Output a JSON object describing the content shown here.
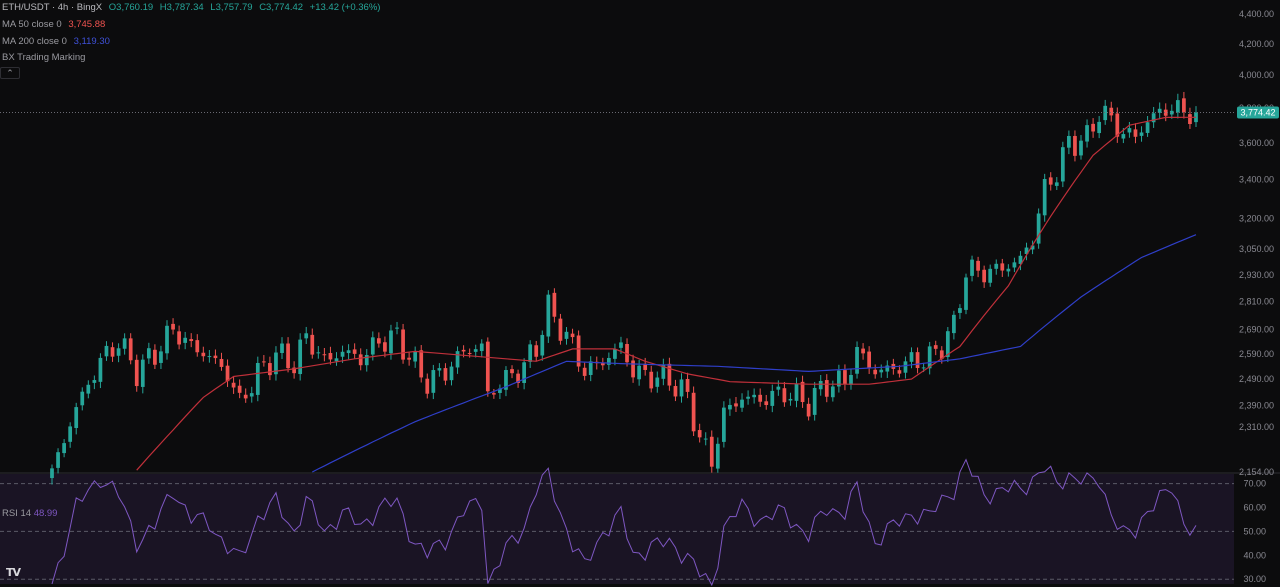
{
  "header": {
    "symbol": "ETH/USDT · 4h · BingX",
    "open": "O3,760.19",
    "high": "H3,787.34",
    "low": "L3,757.79",
    "close": "C3,774.42",
    "change": "+13.42 (+0.36%)"
  },
  "indicators": {
    "ma50_label": "MA 50 close 0",
    "ma50_value": "3,745.88",
    "ma200_label": "MA 200 close 0",
    "ma200_value": "3,119.30",
    "bx_label": "BX Trading Marking",
    "rsi_label": "RSI 14",
    "rsi_value": "48.99",
    "collapse_icon": "chevron-up-icon"
  },
  "price_axis": {
    "ticks": [
      "4,400.00",
      "4,200.00",
      "4,000.00",
      "3,800.00",
      "3,600.00",
      "3,400.00",
      "3,200.00",
      "3,050.00",
      "2,930.00",
      "2,810.00",
      "2,690.00",
      "2,590.00",
      "2,490.00",
      "2,390.00",
      "2,310.00",
      "2,154.00"
    ],
    "last_price_label": "3,774.42"
  },
  "rsi_axis": {
    "ticks": [
      "70.00",
      "60.00",
      "50.00",
      "40.00",
      "30.00"
    ]
  },
  "colors": {
    "up": "#26a69a",
    "down": "#ef5350",
    "ma50": "#c0303a",
    "ma200": "#2f3fc9",
    "rsi": "#7e57c2",
    "background": "#0c0c0d"
  },
  "logo_text": "TV",
  "chart_data": {
    "type": "candlestick",
    "interval": "4h",
    "y_axis_scale": "log",
    "price_range": [
      2154,
      4470
    ],
    "rsi_range": [
      28,
      74
    ],
    "rsi_levels": [
      70,
      50,
      30
    ],
    "candle_count": 190,
    "close_path": [
      [
        0,
        2150
      ],
      [
        4,
        2380
      ],
      [
        8,
        2560
      ],
      [
        11,
        2640
      ],
      [
        14,
        2520
      ],
      [
        17,
        2590
      ],
      [
        20,
        2690
      ],
      [
        23,
        2620
      ],
      [
        26,
        2580
      ],
      [
        29,
        2510
      ],
      [
        31,
        2400
      ],
      [
        34,
        2510
      ],
      [
        37,
        2590
      ],
      [
        40,
        2550
      ],
      [
        42,
        2660
      ],
      [
        45,
        2560
      ],
      [
        48,
        2600
      ],
      [
        51,
        2570
      ],
      [
        54,
        2640
      ],
      [
        57,
        2660
      ],
      [
        60,
        2540
      ],
      [
        62,
        2480
      ],
      [
        65,
        2520
      ],
      [
        68,
        2600
      ],
      [
        71,
        2620
      ],
      [
        72,
        2430
      ],
      [
        75,
        2490
      ],
      [
        78,
        2540
      ],
      [
        80,
        2620
      ],
      [
        82,
        2780
      ],
      [
        84,
        2700
      ],
      [
        86,
        2620
      ],
      [
        88,
        2520
      ],
      [
        91,
        2560
      ],
      [
        94,
        2620
      ],
      [
        96,
        2520
      ],
      [
        99,
        2500
      ],
      [
        102,
        2490
      ],
      [
        105,
        2420
      ],
      [
        107,
        2270
      ],
      [
        109,
        2190
      ],
      [
        111,
        2360
      ],
      [
        114,
        2420
      ],
      [
        117,
        2410
      ],
      [
        121,
        2440
      ],
      [
        125,
        2400
      ],
      [
        128,
        2470
      ],
      [
        131,
        2480
      ],
      [
        133,
        2600
      ],
      [
        136,
        2520
      ],
      [
        139,
        2530
      ],
      [
        142,
        2560
      ],
      [
        145,
        2570
      ],
      [
        147,
        2630
      ],
      [
        149,
        2700
      ],
      [
        151,
        2950
      ],
      [
        154,
        2940
      ],
      [
        157,
        2960
      ],
      [
        160,
        3000
      ],
      [
        162,
        3100
      ],
      [
        164,
        3350
      ],
      [
        166,
        3440
      ],
      [
        168,
        3600
      ],
      [
        171,
        3620
      ],
      [
        173,
        3780
      ],
      [
        175,
        3730
      ],
      [
        177,
        3650
      ],
      [
        179,
        3640
      ],
      [
        181,
        3720
      ],
      [
        183,
        3780
      ],
      [
        185,
        3800
      ],
      [
        187,
        3780
      ],
      [
        189,
        3774
      ]
    ],
    "ma50_path": [
      [
        14,
        2160
      ],
      [
        20,
        2300
      ],
      [
        25,
        2420
      ],
      [
        30,
        2500
      ],
      [
        40,
        2530
      ],
      [
        50,
        2570
      ],
      [
        60,
        2600
      ],
      [
        70,
        2580
      ],
      [
        80,
        2560
      ],
      [
        86,
        2610
      ],
      [
        93,
        2610
      ],
      [
        98,
        2560
      ],
      [
        105,
        2510
      ],
      [
        112,
        2480
      ],
      [
        125,
        2470
      ],
      [
        135,
        2470
      ],
      [
        142,
        2490
      ],
      [
        150,
        2620
      ],
      [
        158,
        2880
      ],
      [
        165,
        3210
      ],
      [
        172,
        3530
      ],
      [
        178,
        3700
      ],
      [
        184,
        3745
      ],
      [
        189,
        3746
      ]
    ],
    "ma200_path": [
      [
        43,
        2154
      ],
      [
        60,
        2330
      ],
      [
        75,
        2460
      ],
      [
        85,
        2560
      ],
      [
        95,
        2550
      ],
      [
        110,
        2540
      ],
      [
        125,
        2520
      ],
      [
        140,
        2540
      ],
      [
        150,
        2570
      ],
      [
        160,
        2620
      ],
      [
        170,
        2830
      ],
      [
        180,
        3010
      ],
      [
        189,
        3119
      ]
    ],
    "rsi_path": [
      [
        0,
        28
      ],
      [
        4,
        60
      ],
      [
        8,
        73
      ],
      [
        11,
        65
      ],
      [
        14,
        46
      ],
      [
        17,
        52
      ],
      [
        20,
        68
      ],
      [
        23,
        55
      ],
      [
        26,
        54
      ],
      [
        29,
        43
      ],
      [
        31,
        38
      ],
      [
        34,
        56
      ],
      [
        37,
        62
      ],
      [
        40,
        50
      ],
      [
        42,
        63
      ],
      [
        45,
        50
      ],
      [
        48,
        58
      ],
      [
        51,
        52
      ],
      [
        54,
        60
      ],
      [
        57,
        62
      ],
      [
        60,
        45
      ],
      [
        62,
        40
      ],
      [
        65,
        47
      ],
      [
        68,
        58
      ],
      [
        71,
        63
      ],
      [
        72,
        29
      ],
      [
        75,
        42
      ],
      [
        78,
        52
      ],
      [
        80,
        68
      ],
      [
        82,
        73
      ],
      [
        84,
        58
      ],
      [
        86,
        45
      ],
      [
        88,
        35
      ],
      [
        91,
        50
      ],
      [
        94,
        57
      ],
      [
        96,
        40
      ],
      [
        99,
        44
      ],
      [
        102,
        45
      ],
      [
        105,
        40
      ],
      [
        107,
        32
      ],
      [
        109,
        27
      ],
      [
        111,
        52
      ],
      [
        114,
        60
      ],
      [
        117,
        55
      ],
      [
        121,
        58
      ],
      [
        125,
        48
      ],
      [
        128,
        60
      ],
      [
        131,
        58
      ],
      [
        133,
        68
      ],
      [
        136,
        46
      ],
      [
        139,
        52
      ],
      [
        142,
        58
      ],
      [
        145,
        56
      ],
      [
        147,
        63
      ],
      [
        149,
        68
      ],
      [
        151,
        78
      ],
      [
        154,
        66
      ],
      [
        157,
        67
      ],
      [
        160,
        68
      ],
      [
        162,
        72
      ],
      [
        164,
        76
      ],
      [
        166,
        70
      ],
      [
        168,
        74
      ],
      [
        171,
        70
      ],
      [
        173,
        72
      ],
      [
        175,
        58
      ],
      [
        177,
        48
      ],
      [
        179,
        50
      ],
      [
        181,
        60
      ],
      [
        183,
        63
      ],
      [
        185,
        68
      ],
      [
        187,
        55
      ],
      [
        189,
        49
      ]
    ]
  }
}
